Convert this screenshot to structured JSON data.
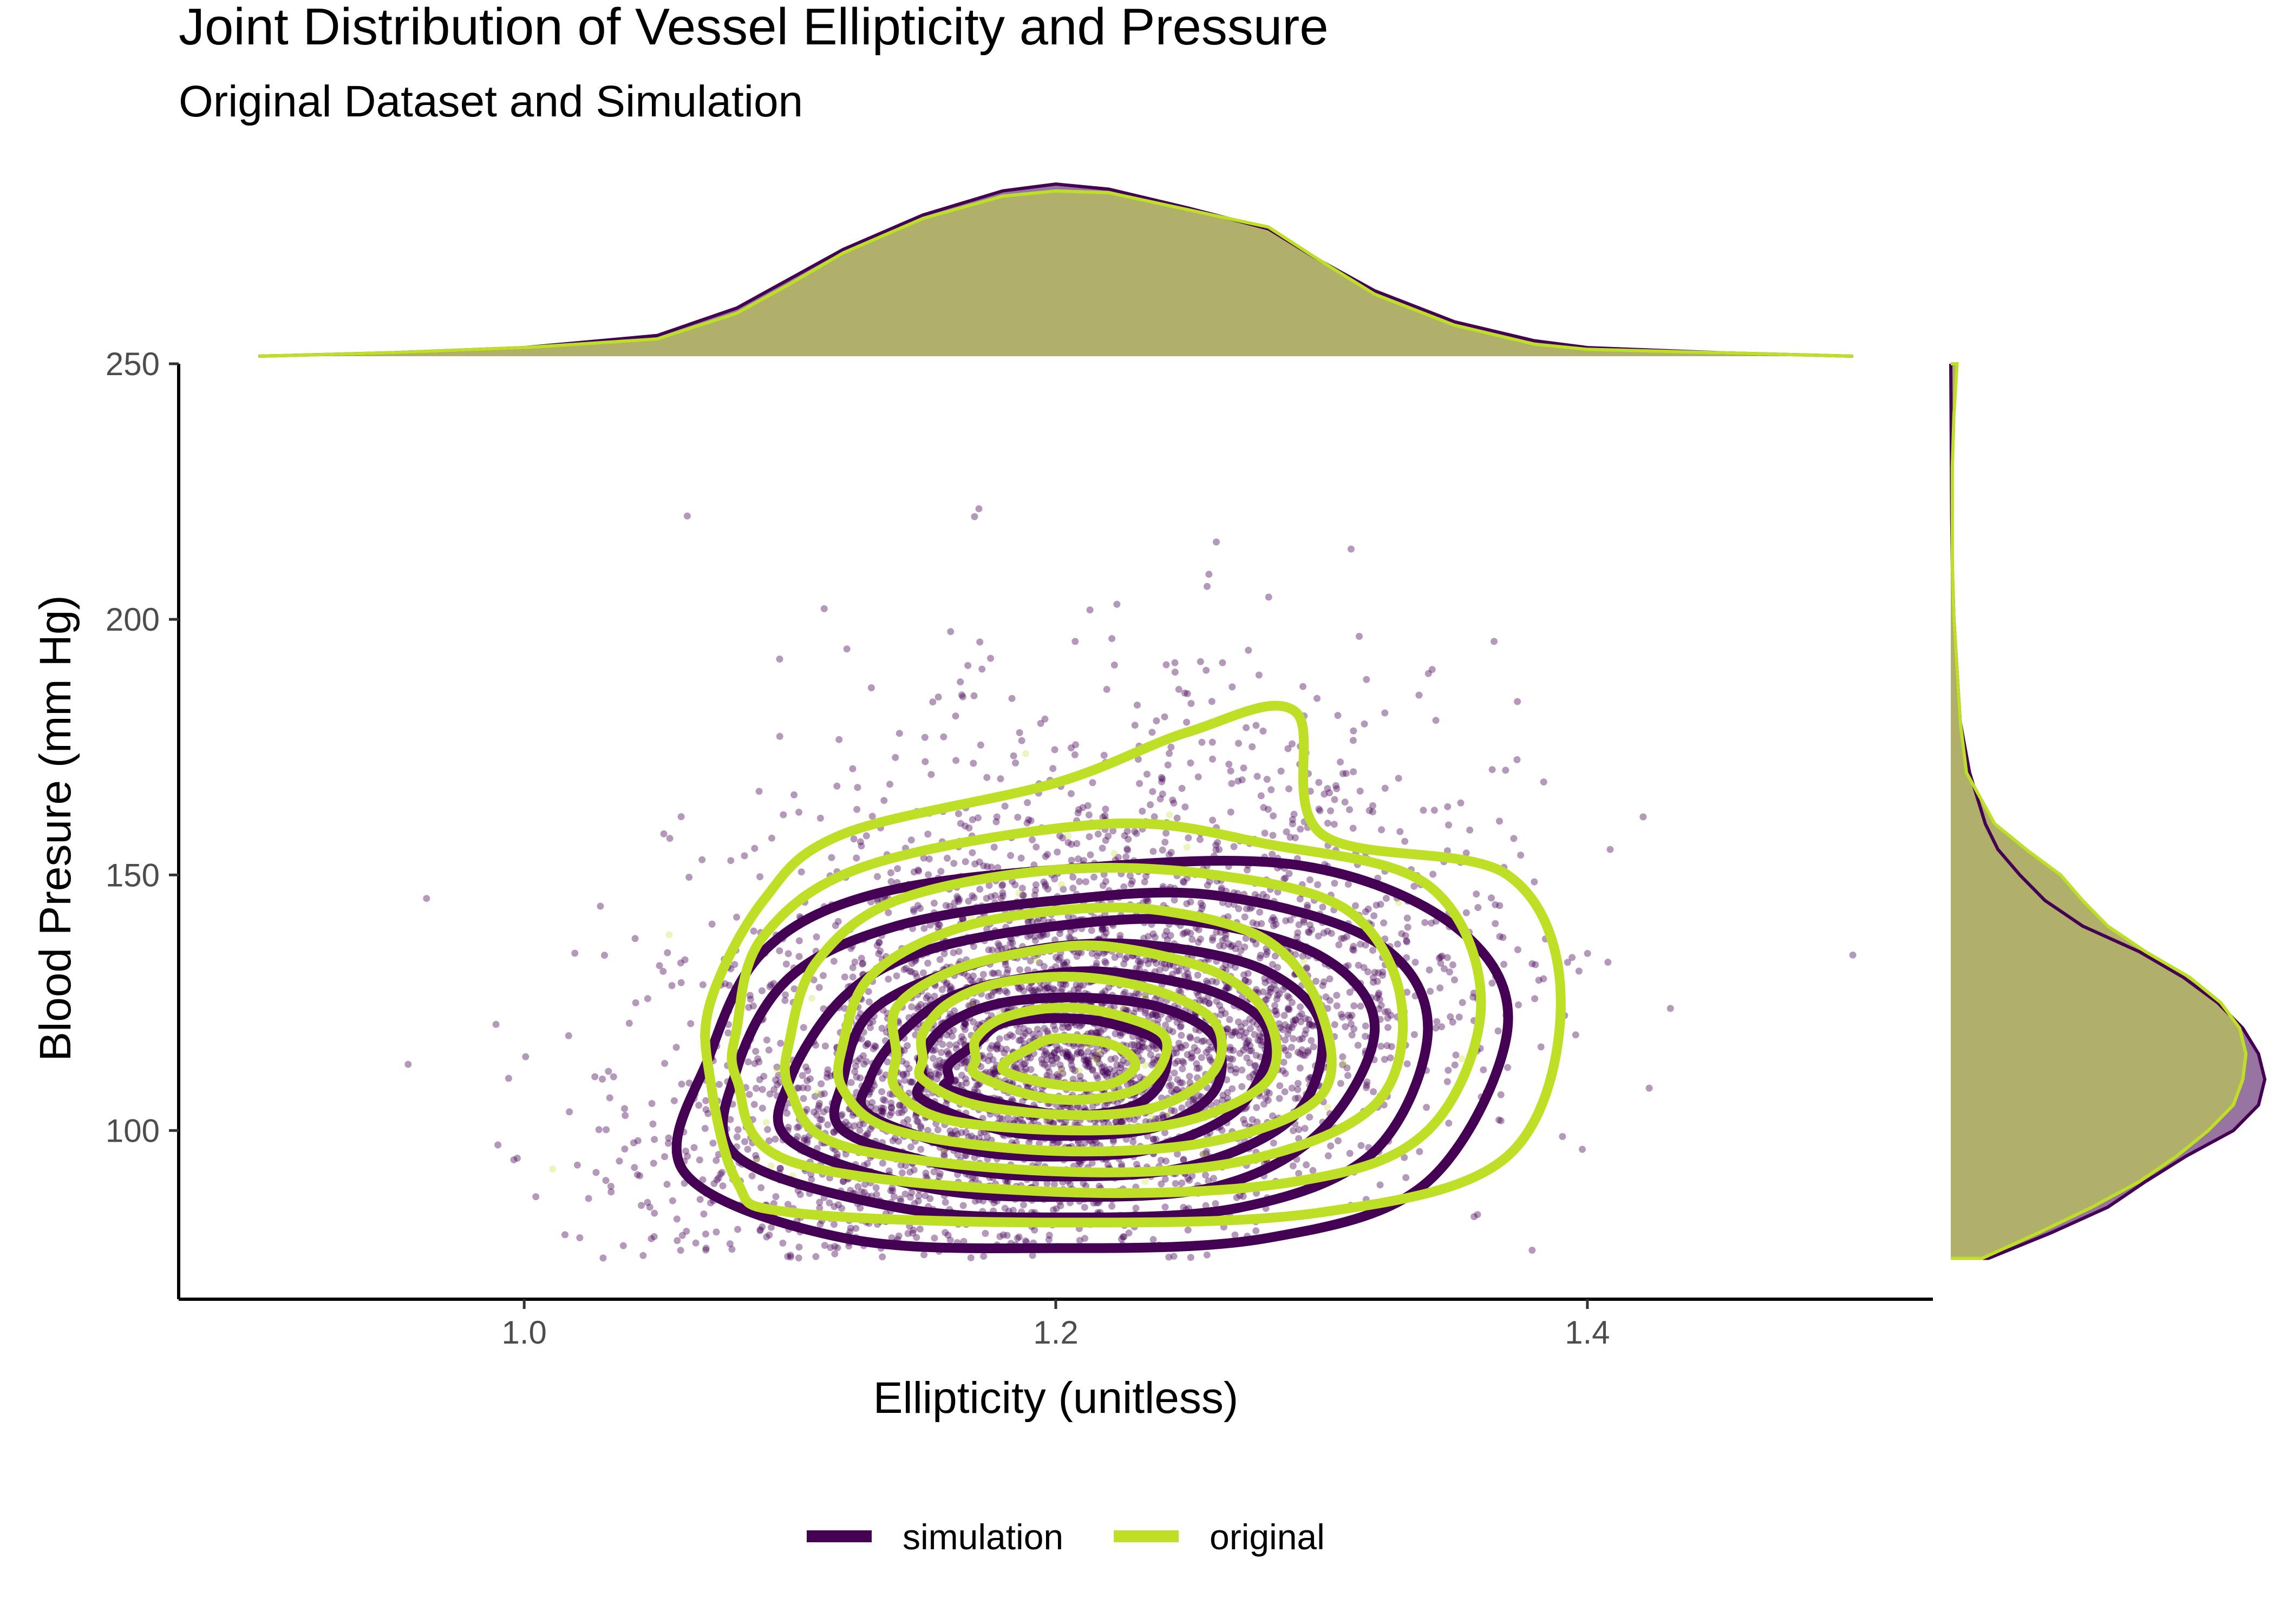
{
  "title": "Joint Distribution of Vessel Ellipticity and Pressure",
  "subtitle": "Original Dataset and Simulation",
  "colors": {
    "simulation": "#440154",
    "original": "#bddf26",
    "overlap_fill": "#b0b06a",
    "axis": "#000000",
    "tick_text": "#4d4d4d"
  },
  "chart_data": {
    "type": "scatter",
    "subtype": "scatter with 2D density contours and marginal density plots",
    "xlabel": "Ellipticity (unitless)",
    "ylabel": "Blood Presure (mm Hg)",
    "xlim": [
      0.87,
      1.53
    ],
    "ylim": [
      67,
      250
    ],
    "x_ticks": [
      "1.0",
      "1.2",
      "1.4"
    ],
    "x_tick_values": [
      1.0,
      1.2,
      1.4
    ],
    "y_ticks": [
      "100",
      "150",
      "200",
      "250"
    ],
    "y_tick_values": [
      100,
      150,
      200,
      250
    ],
    "legend": {
      "position": "bottom",
      "entries": [
        "simulation",
        "original"
      ]
    },
    "series": [
      {
        "name": "simulation",
        "color": "#440154",
        "point_alpha": 0.4,
        "approx_n_points": 4500,
        "center": {
          "x": 1.2,
          "y": 115
        },
        "sd": {
          "x": 0.07,
          "y": 22
        },
        "correlation": 0.4,
        "contours": [
          {
            "level": 1,
            "points": [
              [
                1.06,
                92
              ],
              [
                1.12,
                79
              ],
              [
                1.2,
                77
              ],
              [
                1.28,
                79
              ],
              [
                1.34,
                90
              ],
              [
                1.37,
                120
              ],
              [
                1.35,
                140
              ],
              [
                1.29,
                152
              ],
              [
                1.2,
                151
              ],
              [
                1.13,
                146
              ],
              [
                1.09,
                135
              ],
              [
                1.07,
                115
              ]
            ]
          },
          {
            "level": 2,
            "points": [
              [
                1.08,
                95
              ],
              [
                1.14,
                85
              ],
              [
                1.2,
                83
              ],
              [
                1.27,
                85
              ],
              [
                1.32,
                96
              ],
              [
                1.34,
                120
              ],
              [
                1.32,
                137
              ],
              [
                1.26,
                146
              ],
              [
                1.2,
                145
              ],
              [
                1.14,
                140
              ],
              [
                1.1,
                130
              ],
              [
                1.08,
                112
              ]
            ]
          },
          {
            "level": 3,
            "points": [
              [
                1.1,
                98
              ],
              [
                1.15,
                89
              ],
              [
                1.2,
                87
              ],
              [
                1.26,
                89
              ],
              [
                1.3,
                100
              ],
              [
                1.32,
                120
              ],
              [
                1.3,
                134
              ],
              [
                1.25,
                141
              ],
              [
                1.2,
                140
              ],
              [
                1.15,
                135
              ],
              [
                1.12,
                126
              ],
              [
                1.1,
                110
              ]
            ]
          },
          {
            "level": 4,
            "points": [
              [
                1.12,
                100
              ],
              [
                1.16,
                93
              ],
              [
                1.2,
                91
              ],
              [
                1.25,
                93
              ],
              [
                1.29,
                103
              ],
              [
                1.3,
                120
              ],
              [
                1.28,
                131
              ],
              [
                1.24,
                136
              ],
              [
                1.2,
                136
              ],
              [
                1.16,
                131
              ],
              [
                1.13,
                123
              ],
              [
                1.12,
                110
              ]
            ]
          },
          {
            "level": 5,
            "points": [
              [
                1.13,
                103
              ],
              [
                1.17,
                96
              ],
              [
                1.21,
                95
              ],
              [
                1.24,
                97
              ],
              [
                1.27,
                105
              ],
              [
                1.28,
                119
              ],
              [
                1.26,
                127
              ],
              [
                1.22,
                131
              ],
              [
                1.19,
                130
              ],
              [
                1.16,
                126
              ],
              [
                1.14,
                118
              ],
              [
                1.13,
                110
              ]
            ]
          },
          {
            "level": 6,
            "points": [
              [
                1.15,
                106
              ],
              [
                1.18,
                100
              ],
              [
                1.21,
                99
              ],
              [
                1.24,
                101
              ],
              [
                1.26,
                108
              ],
              [
                1.26,
                118
              ],
              [
                1.24,
                124
              ],
              [
                1.21,
                126
              ],
              [
                1.18,
                125
              ],
              [
                1.16,
                121
              ],
              [
                1.15,
                115
              ],
              [
                1.15,
                110
              ]
            ]
          },
          {
            "level": 7,
            "points": [
              [
                1.16,
                108
              ],
              [
                1.19,
                104
              ],
              [
                1.21,
                103
              ],
              [
                1.23,
                105
              ],
              [
                1.24,
                110
              ],
              [
                1.24,
                117
              ],
              [
                1.22,
                121
              ],
              [
                1.2,
                122
              ],
              [
                1.18,
                121
              ],
              [
                1.17,
                117
              ],
              [
                1.16,
                113
              ],
              [
                1.16,
                110
              ]
            ]
          }
        ]
      },
      {
        "name": "original",
        "color": "#bddf26",
        "point_alpha": 0.3,
        "approx_n_points": 60,
        "center": {
          "x": 1.2,
          "y": 115
        },
        "sd": {
          "x": 0.07,
          "y": 22
        },
        "correlation": 0.4,
        "contours": [
          {
            "level": 1,
            "points": [
              [
                1.07,
                110
              ],
              [
                1.08,
                90
              ],
              [
                1.1,
                84
              ],
              [
                1.2,
                82
              ],
              [
                1.3,
                84
              ],
              [
                1.37,
                95
              ],
              [
                1.39,
                125
              ],
              [
                1.37,
                150
              ],
              [
                1.3,
                158
              ],
              [
                1.29,
                182
              ],
              [
                1.25,
                178
              ],
              [
                1.2,
                168
              ],
              [
                1.12,
                158
              ],
              [
                1.09,
                145
              ],
              [
                1.07,
                125
              ]
            ]
          },
          {
            "level": 2,
            "points": [
              [
                1.08,
                110
              ],
              [
                1.1,
                94
              ],
              [
                1.2,
                88
              ],
              [
                1.29,
                90
              ],
              [
                1.34,
                100
              ],
              [
                1.36,
                125
              ],
              [
                1.34,
                148
              ],
              [
                1.28,
                156
              ],
              [
                1.22,
                160
              ],
              [
                1.13,
                152
              ],
              [
                1.09,
                138
              ],
              [
                1.08,
                120
              ]
            ]
          },
          {
            "level": 3,
            "points": [
              [
                1.1,
                108
              ],
              [
                1.12,
                97
              ],
              [
                1.2,
                92
              ],
              [
                1.27,
                94
              ],
              [
                1.32,
                105
              ],
              [
                1.33,
                125
              ],
              [
                1.31,
                143
              ],
              [
                1.26,
                150
              ],
              [
                1.2,
                151
              ],
              [
                1.14,
                145
              ],
              [
                1.11,
                133
              ],
              [
                1.1,
                118
              ]
            ]
          },
          {
            "level": 4,
            "points": [
              [
                1.12,
                108
              ],
              [
                1.14,
                100
              ],
              [
                1.2,
                96
              ],
              [
                1.26,
                98
              ],
              [
                1.3,
                107
              ],
              [
                1.3,
                123
              ],
              [
                1.28,
                137
              ],
              [
                1.24,
                143
              ],
              [
                1.2,
                143
              ],
              [
                1.16,
                139
              ],
              [
                1.13,
                130
              ],
              [
                1.12,
                117
              ]
            ]
          },
          {
            "level": 5,
            "points": [
              [
                1.14,
                108
              ],
              [
                1.16,
                102
              ],
              [
                1.21,
                100
              ],
              [
                1.25,
                102
              ],
              [
                1.28,
                110
              ],
              [
                1.28,
                122
              ],
              [
                1.26,
                131
              ],
              [
                1.22,
                136
              ],
              [
                1.19,
                135
              ],
              [
                1.16,
                131
              ],
              [
                1.14,
                124
              ],
              [
                1.14,
                115
              ]
            ]
          },
          {
            "level": 6,
            "points": [
              [
                1.15,
                110
              ],
              [
                1.17,
                105
              ],
              [
                1.21,
                103
              ],
              [
                1.24,
                105
              ],
              [
                1.26,
                112
              ],
              [
                1.26,
                121
              ],
              [
                1.24,
                127
              ],
              [
                1.21,
                130
              ],
              [
                1.18,
                129
              ],
              [
                1.16,
                125
              ],
              [
                1.15,
                119
              ],
              [
                1.15,
                114
              ]
            ]
          },
          {
            "level": 7,
            "points": [
              [
                1.17,
                111
              ],
              [
                1.19,
                107
              ],
              [
                1.21,
                106
              ],
              [
                1.23,
                108
              ],
              [
                1.24,
                113
              ],
              [
                1.24,
                119
              ],
              [
                1.22,
                123
              ],
              [
                1.2,
                124
              ],
              [
                1.18,
                122
              ],
              [
                1.17,
                118
              ],
              [
                1.17,
                114
              ]
            ]
          },
          {
            "level": 8,
            "points": [
              [
                1.18,
                112
              ],
              [
                1.2,
                109
              ],
              [
                1.22,
                109
              ],
              [
                1.23,
                113
              ],
              [
                1.22,
                117
              ],
              [
                1.2,
                118
              ],
              [
                1.19,
                116
              ]
            ]
          }
        ]
      }
    ],
    "marginal_x": {
      "x": [
        0.9,
        0.95,
        1.0,
        1.05,
        1.08,
        1.1,
        1.12,
        1.15,
        1.18,
        1.2,
        1.22,
        1.25,
        1.28,
        1.3,
        1.32,
        1.35,
        1.38,
        1.4,
        1.45,
        1.5
      ],
      "simulation": [
        0.0,
        0.02,
        0.05,
        0.12,
        0.28,
        0.45,
        0.62,
        0.82,
        0.96,
        1.0,
        0.97,
        0.86,
        0.74,
        0.55,
        0.38,
        0.2,
        0.09,
        0.05,
        0.02,
        0.0
      ],
      "original": [
        0.0,
        0.02,
        0.05,
        0.1,
        0.25,
        0.42,
        0.6,
        0.8,
        0.93,
        0.96,
        0.95,
        0.85,
        0.75,
        0.55,
        0.36,
        0.18,
        0.07,
        0.04,
        0.02,
        0.0
      ]
    },
    "marginal_y": {
      "y": [
        75,
        80,
        85,
        90,
        95,
        100,
        105,
        110,
        115,
        120,
        125,
        130,
        135,
        140,
        145,
        150,
        155,
        160,
        170,
        180,
        190,
        200,
        210,
        220,
        230,
        240,
        250
      ],
      "simulation": [
        0.12,
        0.32,
        0.5,
        0.62,
        0.75,
        0.9,
        0.98,
        1.0,
        0.98,
        0.93,
        0.85,
        0.74,
        0.6,
        0.42,
        0.3,
        0.22,
        0.15,
        0.11,
        0.06,
        0.03,
        0.02,
        0.01,
        0.005,
        0.003,
        0.002,
        0.001,
        0.0
      ],
      "original": [
        0.1,
        0.28,
        0.45,
        0.6,
        0.72,
        0.82,
        0.9,
        0.93,
        0.94,
        0.92,
        0.86,
        0.76,
        0.62,
        0.5,
        0.42,
        0.35,
        0.24,
        0.14,
        0.05,
        0.03,
        0.02,
        0.01,
        0.005,
        0.005,
        0.005,
        0.01,
        0.02
      ]
    }
  }
}
